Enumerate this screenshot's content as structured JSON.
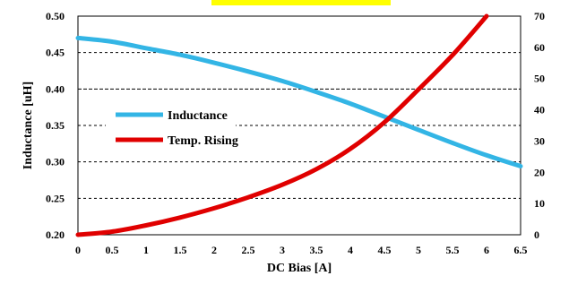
{
  "chart_data": {
    "type": "line",
    "x": [
      0,
      0.5,
      1,
      1.5,
      2,
      2.5,
      3,
      3.5,
      4,
      4.5,
      5,
      5.5,
      6,
      6.5
    ],
    "xlabel": "DC Bias [A]",
    "ylabel": "Inductance [uH]",
    "xlim": [
      0,
      6.5
    ],
    "ylim": [
      0.2,
      0.5
    ],
    "y2lim": [
      0,
      70
    ],
    "xticks": [
      "0",
      "0.5",
      "1",
      "1.5",
      "2",
      "2.5",
      "3",
      "3.5",
      "4",
      "4.5",
      "5",
      "5.5",
      "6",
      "6.5"
    ],
    "yticks": [
      "0.20",
      "0.25",
      "0.30",
      "0.35",
      "0.40",
      "0.45",
      "0.50"
    ],
    "y2ticks": [
      "0",
      "10",
      "20",
      "30",
      "40",
      "50",
      "60",
      "70"
    ],
    "grid": "horizontal-dashed",
    "legend_position": "center-left",
    "series": [
      {
        "name": "Inductance",
        "axis": "left",
        "color": "#33b5e5",
        "values": [
          0.47,
          0.465,
          0.456,
          0.447,
          0.436,
          0.424,
          0.411,
          0.396,
          0.38,
          0.362,
          0.344,
          0.326,
          0.309,
          0.294
        ]
      },
      {
        "name": "Temp. Rising",
        "axis": "right",
        "color": "#e00000",
        "values": [
          0,
          1,
          3,
          5.5,
          8.5,
          12,
          16,
          21,
          27.5,
          36,
          46.5,
          57.5,
          70,
          null
        ]
      }
    ]
  }
}
